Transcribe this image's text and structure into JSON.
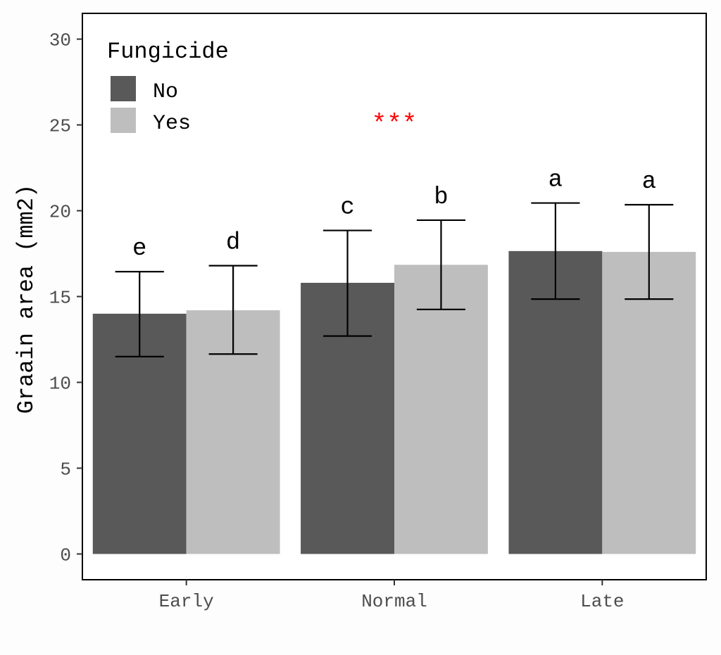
{
  "chart_data": {
    "type": "bar",
    "ylabel": "Graain area (mm2)",
    "xlabel": "",
    "ylim": [
      -1.5,
      31.5
    ],
    "yticks": [
      0,
      5,
      10,
      15,
      20,
      25,
      30
    ],
    "categories": [
      "Early",
      "Normal",
      "Late"
    ],
    "legend": {
      "title": "Fungicide",
      "position": "top-left"
    },
    "series": [
      {
        "name": "No",
        "color": "#595959",
        "values": [
          14.0,
          15.8,
          17.65
        ],
        "err_low": [
          11.5,
          12.7,
          14.85
        ],
        "err_high": [
          16.45,
          18.85,
          20.45
        ],
        "letters": [
          "e",
          "c",
          "a"
        ]
      },
      {
        "name": "Yes",
        "color": "#bebebe",
        "values": [
          14.2,
          16.85,
          17.6
        ],
        "err_low": [
          11.65,
          14.25,
          14.85
        ],
        "err_high": [
          16.8,
          19.45,
          20.35
        ],
        "letters": [
          "d",
          "b",
          "a"
        ]
      }
    ],
    "annotation": {
      "text": "***",
      "color": "#ff0000",
      "y": 25.2
    },
    "grid": false
  }
}
